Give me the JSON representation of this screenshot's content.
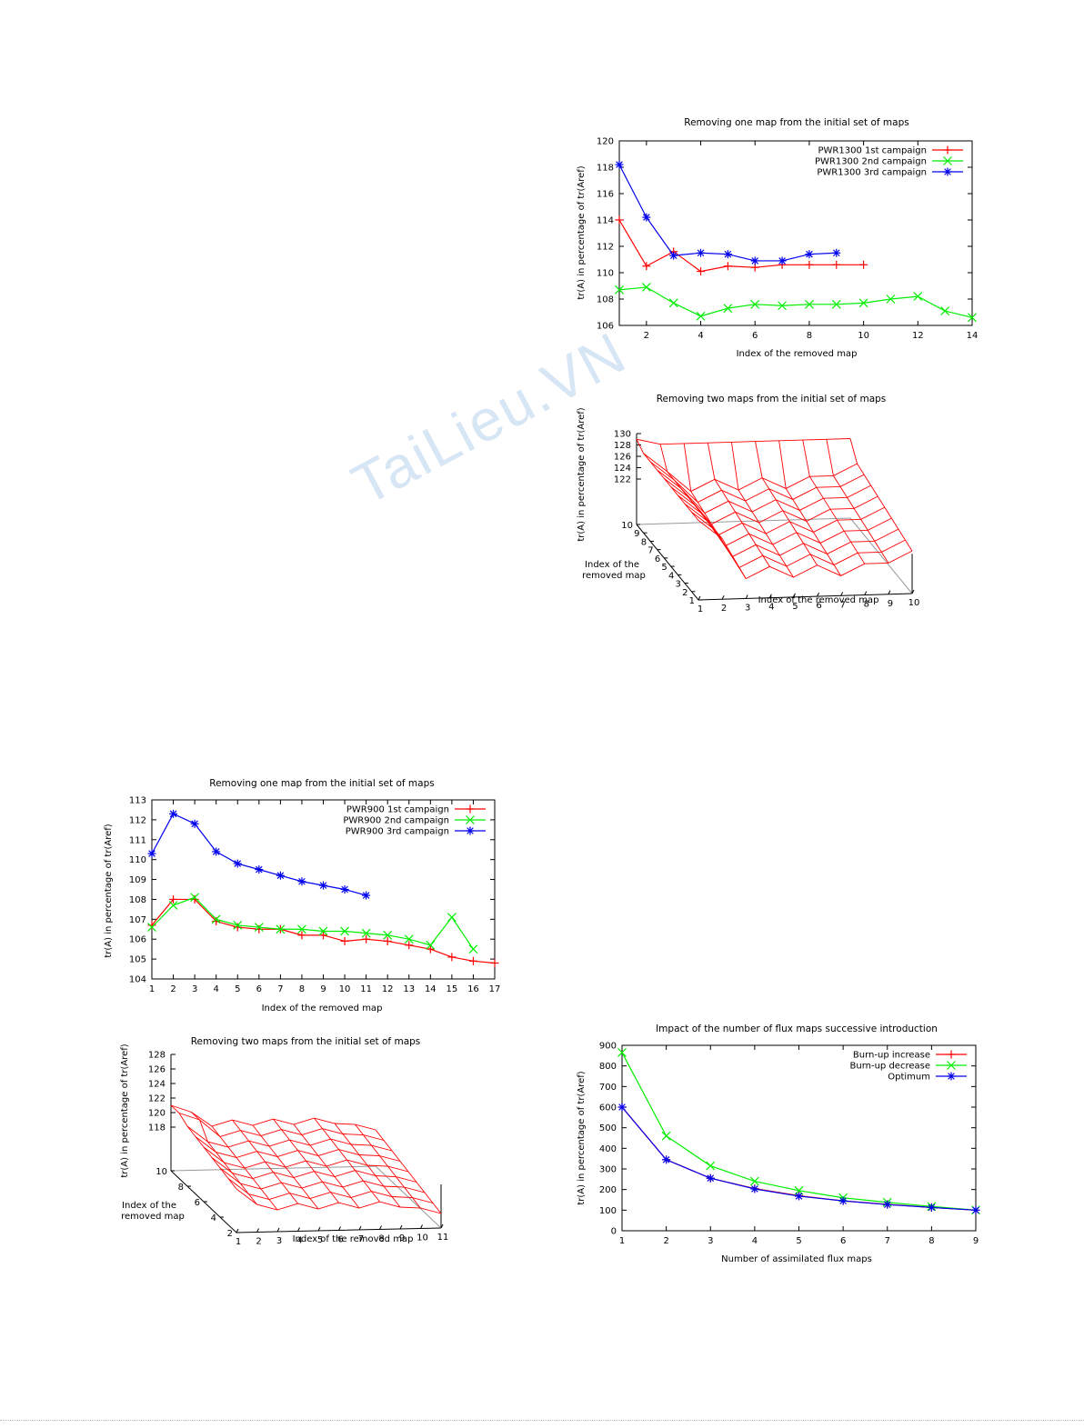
{
  "watermark": "TaiLieu.VN",
  "chart_data": [
    {
      "type": "line",
      "title": "Removing one map from the initial set of maps",
      "xlabel": "Index of the removed map",
      "ylabel": "tr(A) in percentage of tr(Aref)",
      "xlim": [
        1,
        14
      ],
      "ylim": [
        106,
        120
      ],
      "xticks": [
        2,
        4,
        6,
        8,
        10,
        12,
        14
      ],
      "yticks": [
        106,
        108,
        110,
        112,
        114,
        116,
        118,
        120
      ],
      "legend": "top-right",
      "series": [
        {
          "name": "PWR1300 1st campaign",
          "color": "#ff0000",
          "marker": "+",
          "x": [
            1,
            2,
            3,
            4,
            5,
            6,
            7,
            8,
            9,
            10
          ],
          "y": [
            114.0,
            110.5,
            111.6,
            110.1,
            110.5,
            110.4,
            110.6,
            110.6,
            110.6,
            110.6
          ]
        },
        {
          "name": "PWR1300 2nd campaign",
          "color": "#00ee00",
          "marker": "x",
          "x": [
            1,
            2,
            3,
            4,
            5,
            6,
            7,
            8,
            9,
            10,
            11,
            12,
            13,
            14
          ],
          "y": [
            108.7,
            108.9,
            107.7,
            106.7,
            107.3,
            107.6,
            107.5,
            107.6,
            107.6,
            107.7,
            108.0,
            108.2,
            107.1,
            106.6
          ]
        },
        {
          "name": "PWR1300 3rd campaign",
          "color": "#0000ee",
          "marker": "*",
          "x": [
            1,
            2,
            3,
            4,
            5,
            6,
            7,
            8,
            9
          ],
          "y": [
            118.2,
            114.2,
            111.3,
            111.5,
            111.4,
            110.9,
            110.9,
            111.4,
            111.5
          ]
        }
      ]
    },
    {
      "type": "surface",
      "title": "Removing two maps from the initial set of maps",
      "xlabel": "Index of the removed map",
      "ylabel": "Index of the removed map",
      "zlabel": "tr(A) in percentage of tr(Aref)",
      "xticks": [
        1,
        2,
        3,
        4,
        5,
        6,
        7,
        8,
        9,
        10
      ],
      "yticks": [
        1,
        2,
        3,
        4,
        5,
        6,
        7,
        8,
        9,
        10
      ],
      "zticks": [
        122,
        124,
        126,
        128,
        130
      ],
      "zlim": [
        114,
        130
      ],
      "color": "#ff0000"
    },
    {
      "type": "line",
      "title": "Removing one map from the initial set of maps",
      "xlabel": "Index of the removed map",
      "ylabel": "tr(A) in percentage of tr(Aref)",
      "xlim": [
        1,
        17
      ],
      "ylim": [
        104,
        113
      ],
      "xticks": [
        1,
        2,
        3,
        4,
        5,
        6,
        7,
        8,
        9,
        10,
        11,
        12,
        13,
        14,
        15,
        16,
        17
      ],
      "yticks": [
        104,
        105,
        106,
        107,
        108,
        109,
        110,
        111,
        112,
        113
      ],
      "legend": "top-right",
      "series": [
        {
          "name": "PWR900 1st campaign",
          "color": "#ff0000",
          "marker": "+",
          "x": [
            1,
            2,
            3,
            4,
            5,
            6,
            7,
            8,
            9,
            10,
            11,
            12,
            13,
            14,
            15,
            16,
            17
          ],
          "y": [
            106.7,
            108.0,
            108.0,
            106.9,
            106.6,
            106.5,
            106.5,
            106.2,
            106.2,
            105.9,
            106.0,
            105.9,
            105.7,
            105.5,
            105.1,
            104.9,
            104.8
          ]
        },
        {
          "name": "PWR900 2nd campaign",
          "color": "#00ee00",
          "marker": "x",
          "x": [
            1,
            2,
            3,
            4,
            5,
            6,
            7,
            8,
            9,
            10,
            11,
            12,
            13,
            14,
            15,
            16
          ],
          "y": [
            106.6,
            107.7,
            108.1,
            107.0,
            106.7,
            106.6,
            106.5,
            106.5,
            106.4,
            106.4,
            106.3,
            106.2,
            106.0,
            105.7,
            107.1,
            105.5
          ]
        },
        {
          "name": "PWR900 3rd campaign",
          "color": "#0000ee",
          "marker": "*",
          "x": [
            1,
            2,
            3,
            4,
            5,
            6,
            7,
            8,
            9,
            10,
            11
          ],
          "y": [
            110.3,
            112.3,
            111.8,
            110.4,
            109.8,
            109.5,
            109.2,
            108.9,
            108.7,
            108.5,
            108.2
          ]
        }
      ]
    },
    {
      "type": "surface",
      "title": "Removing two maps from the initial set of maps",
      "xlabel": "Index of the removed map",
      "ylabel": "Index of the removed map",
      "zlabel": "tr(A) in percentage of tr(Aref)",
      "xticks": [
        1,
        2,
        3,
        4,
        5,
        6,
        7,
        8,
        9,
        10,
        11
      ],
      "yticks": [
        2,
        4,
        6,
        8,
        10
      ],
      "zticks": [
        118,
        120,
        122,
        124,
        126,
        128
      ],
      "zlim": [
        112,
        128
      ],
      "color": "#ff0000"
    },
    {
      "type": "line",
      "title": "Impact of the number of flux maps successive introduction",
      "xlabel": "Number of assimilated flux maps",
      "ylabel": "tr(A) in percentage of tr(Aref)",
      "xlim": [
        1,
        9
      ],
      "ylim": [
        0,
        900
      ],
      "xticks": [
        1,
        2,
        3,
        4,
        5,
        6,
        7,
        8,
        9
      ],
      "yticks": [
        0,
        100,
        200,
        300,
        400,
        500,
        600,
        700,
        800,
        900
      ],
      "legend": "top-right",
      "series": [
        {
          "name": "Burn-up increase",
          "color": "#ff0000",
          "marker": "+",
          "x": [
            1,
            2,
            3,
            4,
            5,
            6,
            7,
            8,
            9
          ],
          "y": [
            600,
            345,
            255,
            205,
            170,
            145,
            128,
            113,
            100
          ]
        },
        {
          "name": "Burn-up decrease",
          "color": "#00ee00",
          "marker": "x",
          "x": [
            1,
            2,
            3,
            4,
            5,
            6,
            7,
            8,
            9
          ],
          "y": [
            865,
            460,
            315,
            240,
            195,
            160,
            138,
            118,
            100
          ]
        },
        {
          "name": "Optimum",
          "color": "#0000ee",
          "marker": "*",
          "x": [
            1,
            2,
            3,
            4,
            5,
            6,
            7,
            8,
            9
          ],
          "y": [
            600,
            345,
            255,
            203,
            168,
            145,
            127,
            113,
            100
          ]
        }
      ]
    }
  ]
}
